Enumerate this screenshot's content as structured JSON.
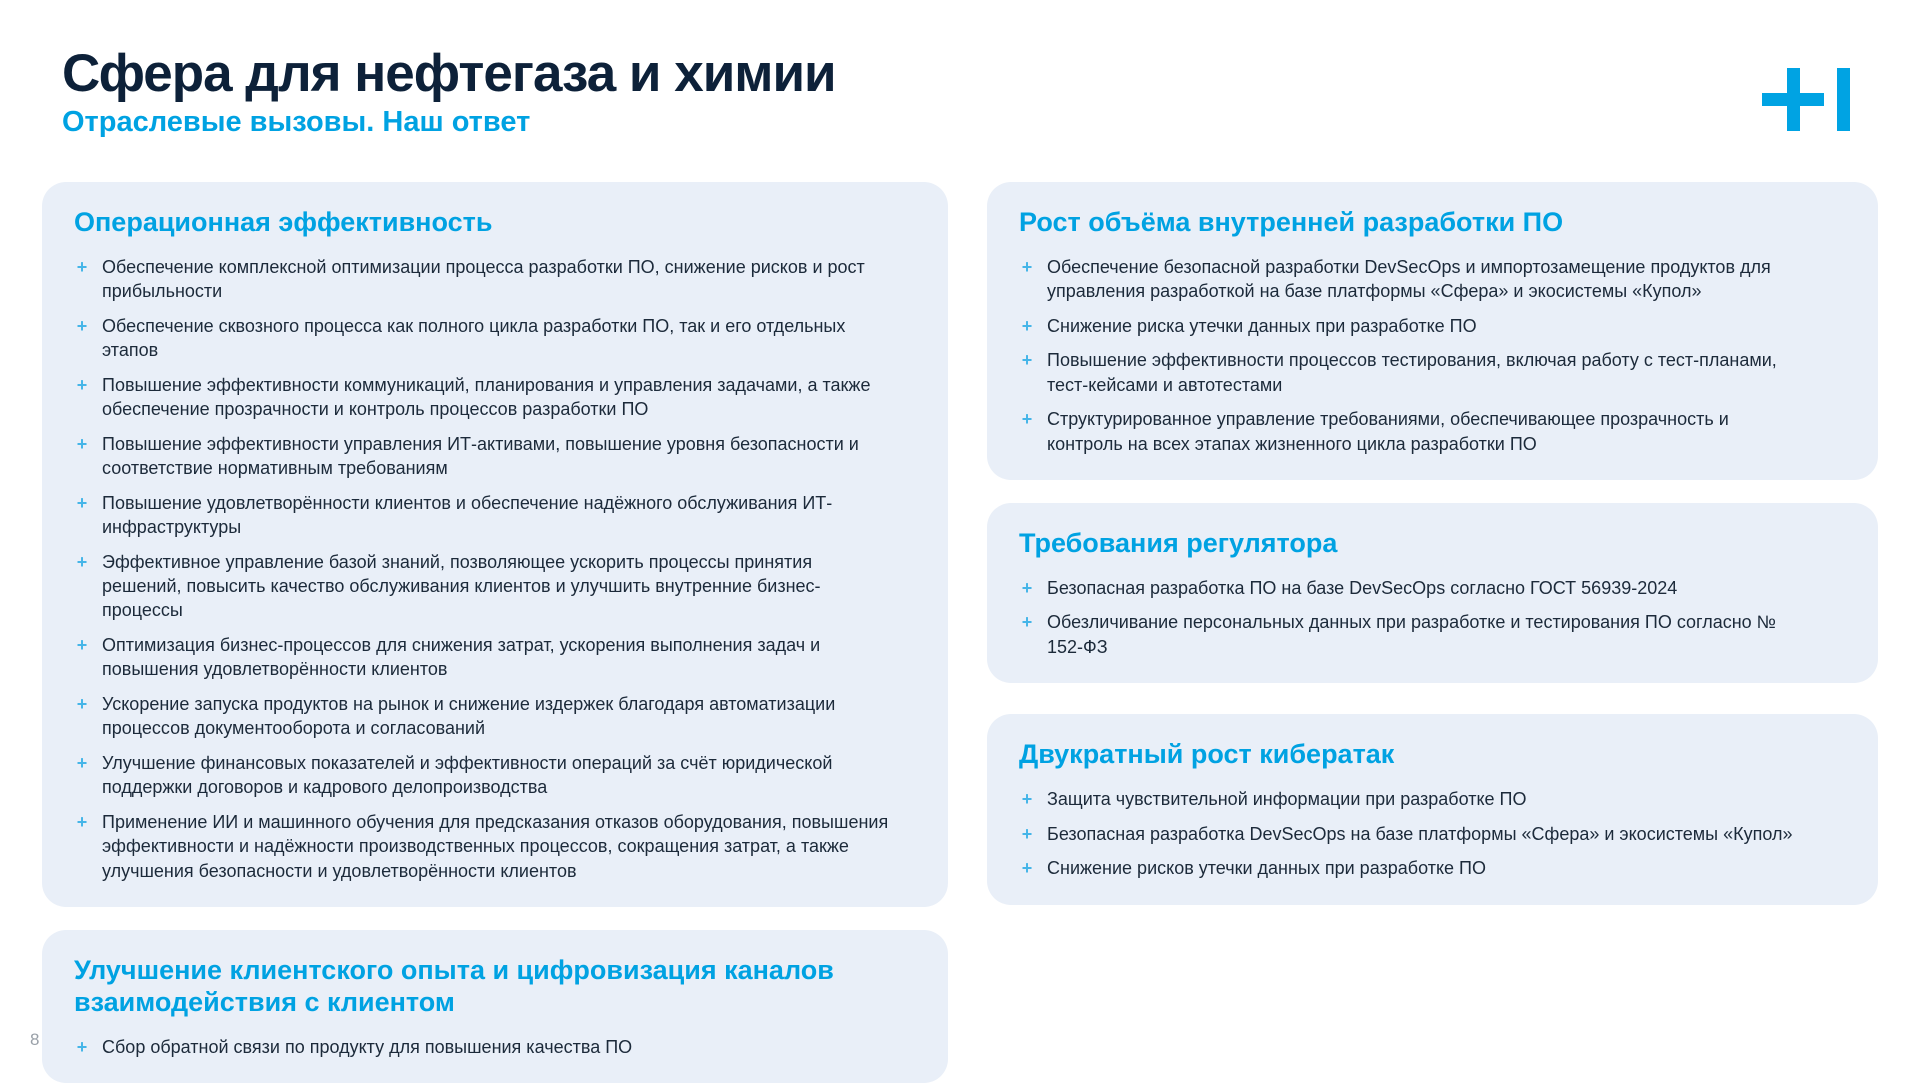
{
  "header": {
    "title": "Сфера для нефтегаза и химии",
    "subtitle": "Отраслевые вызовы. Наш ответ"
  },
  "logo": {
    "icon": "plus-bar-brand-logo"
  },
  "bullet": {
    "glyph": "+"
  },
  "colors": {
    "accent_azure": "#00a2e2",
    "title_navy": "#0d2139",
    "body_text": "#1c2a3a",
    "card_background": "#e9eff8",
    "bullet_marker": "#45b5e8",
    "page_number_gray": "#99a0a8"
  },
  "page": {
    "number": "8"
  },
  "cards": {
    "left": [
      {
        "title": "Операционная эффективность",
        "items": [
          "Обеспечение комплексной оптимизации процесса разработки ПО, снижение рисков и рост прибыльности",
          "Обеспечение сквозного процесса как полного цикла разработки ПО, так и его отдельных этапов",
          "Повышение эффективности коммуникаций, планирования и управления задачами, а также обеспечение прозрачности и контроль процессов разработки ПО",
          "Повышение эффективности управления ИТ-активами, повышение уровня безопасности и соответствие нормативным требованиям",
          "Повышение удовлетворённости клиентов и обеспечение надёжного обслуживания ИТ-инфраструктуры",
          "Эффективное управление базой знаний, позволяющее ускорить процессы принятия решений, повысить качество обслуживания клиентов и улучшить внутренние бизнес-процессы",
          "Оптимизация бизнес-процессов для снижения затрат, ускорения выполнения задач и повышения удовлетворённости клиентов",
          "Ускорение запуска продуктов на рынок и снижение издержек благодаря автоматизации процессов документооборота и согласований",
          "Улучшение финансовых показателей и эффективности операций за счёт юридической поддержки договоров и кадрового делопроизводства",
          "Применение ИИ и машинного обучения для предсказания отказов оборудования, повышения эффективности и надёжности производственных процессов, сокращения затрат, а также улучшения безопасности и удовлетворённости клиентов"
        ]
      },
      {
        "title": "Улучшение клиентского опыта и цифровизация каналов взаимодействия с клиентом",
        "items": [
          "Сбор обратной связи по продукту для повышения качества ПО"
        ]
      }
    ],
    "right": [
      {
        "title": "Рост объёма внутренней разработки ПО",
        "items": [
          "Обеспечение безопасной разработки DevSecOps и импортозамещение продуктов для управления разработкой на базе платформы «Сфера» и экосистемы «Купол»",
          "Снижение риска утечки данных при разработке ПО",
          "Повышение эффективности процессов тестирования, включая работу с тест-планами, тест-кейсами и автотестами",
          "Структурированное управление требованиями, обеспечивающее прозрачность и контроль на всех этапах жизненного цикла разработки ПО"
        ]
      },
      {
        "title": "Требования регулятора",
        "items": [
          "Безопасная разработка ПО на базе DevSecOps согласно ГОСТ 56939-2024",
          "Обезличивание персональных данных при разработке и тестирования ПО согласно № 152-ФЗ"
        ]
      },
      {
        "title": "Двукратный рост кибератак",
        "items": [
          "Защита чувствительной информации при разработке ПО",
          "Безопасная разработка DevSecOps на базе платформы «Сфера» и экосистемы «Купол»",
          "Снижение рисков утечки данных при разработке ПО"
        ]
      }
    ]
  }
}
